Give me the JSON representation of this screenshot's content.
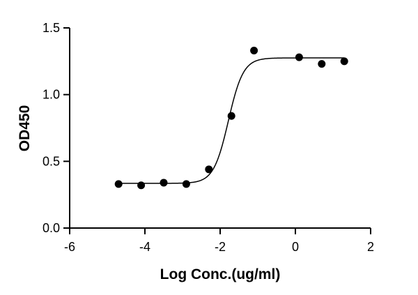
{
  "chart_data": {
    "type": "scatter",
    "title": "",
    "xlabel": "Log Conc.(ug/ml)",
    "ylabel": "OD450",
    "xlim": [
      -6,
      2
    ],
    "ylim": [
      0,
      1.5
    ],
    "x_ticks": [
      -6,
      -4,
      -2,
      0,
      2
    ],
    "x_tick_labels": [
      "-6",
      "-4",
      "-2",
      "0",
      "2"
    ],
    "y_ticks": [
      0,
      0.5,
      1.0,
      1.5
    ],
    "y_tick_labels": [
      "0.0",
      "0.5",
      "1.0",
      "1.5"
    ],
    "grid": false,
    "legend": "none",
    "series": [
      {
        "points": [
          {
            "x": -4.7,
            "y": 0.33
          },
          {
            "x": -4.1,
            "y": 0.32
          },
          {
            "x": -3.5,
            "y": 0.34
          },
          {
            "x": -2.9,
            "y": 0.33
          },
          {
            "x": -2.3,
            "y": 0.44
          },
          {
            "x": -1.7,
            "y": 0.84
          },
          {
            "x": -1.1,
            "y": 1.33
          },
          {
            "x": 0.1,
            "y": 1.28
          },
          {
            "x": 0.7,
            "y": 1.23
          },
          {
            "x": 1.3,
            "y": 1.25
          }
        ],
        "fit": {
          "model": "four-parameter logistic",
          "bottom": 0.335,
          "top": 1.275,
          "log_ec50": -1.78,
          "hill_slope": 2.2,
          "x_range": [
            -4.7,
            1.3
          ]
        },
        "color": "#000000"
      }
    ]
  }
}
